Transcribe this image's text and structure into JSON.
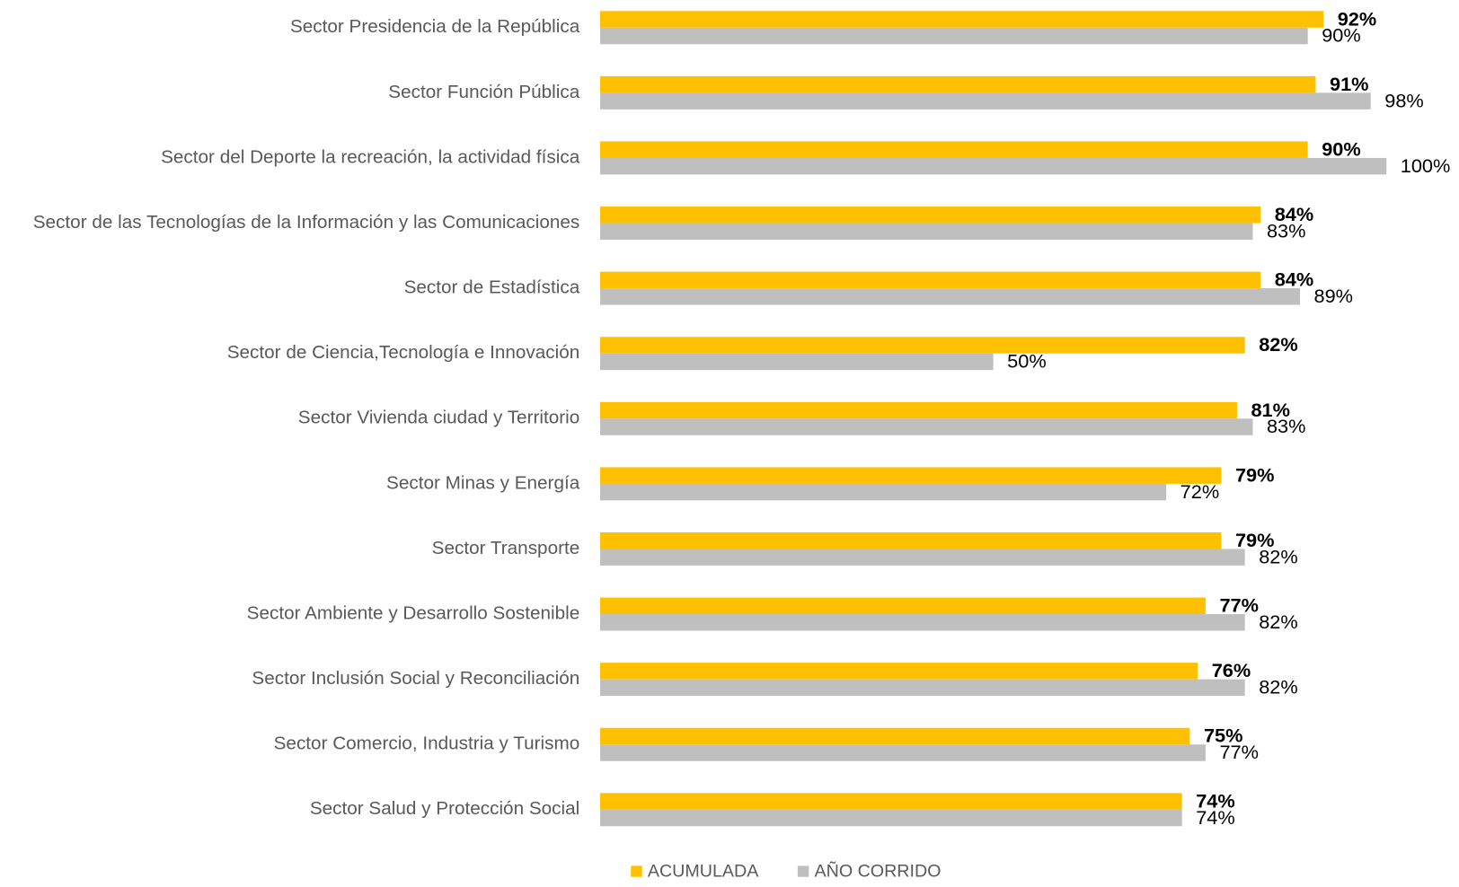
{
  "chart_data": {
    "type": "bar",
    "orientation": "horizontal",
    "categories": [
      "Sector Presidencia de la República",
      "Sector Función Pública",
      "Sector del Deporte la recreación, la actividad física",
      "Sector de las Tecnologías de la Información y las Comunicaciones",
      "Sector de Estadística",
      "Sector de Ciencia,Tecnología e Innovación",
      "Sector Vivienda ciudad y Territorio",
      "Sector Minas y Energía",
      "Sector Transporte",
      "Sector Ambiente y Desarrollo Sostenible",
      "Sector Inclusión Social y Reconciliación",
      "Sector Comercio, Industria y Turismo",
      "Sector Salud y Protección Social"
    ],
    "series": [
      {
        "name": "ACUMULADA",
        "color": "#FFC000",
        "values": [
          92,
          91,
          90,
          84,
          84,
          82,
          81,
          79,
          79,
          77,
          76,
          75,
          74
        ],
        "value_labels": [
          "92%",
          "91%",
          "90%",
          "84%",
          "84%",
          "82%",
          "81%",
          "79%",
          "79%",
          "77%",
          "76%",
          "75%",
          "74%"
        ]
      },
      {
        "name": "AÑO CORRIDO",
        "color": "#BFBFBF",
        "values": [
          90,
          98,
          100,
          83,
          89,
          50,
          83,
          72,
          82,
          82,
          82,
          77,
          74
        ],
        "value_labels": [
          "90%",
          "98%",
          "100%",
          "83%",
          "89%",
          "50%",
          "83%",
          "72%",
          "82%",
          "82%",
          "82%",
          "77%",
          "74%"
        ]
      }
    ],
    "legend": "bottom"
  }
}
